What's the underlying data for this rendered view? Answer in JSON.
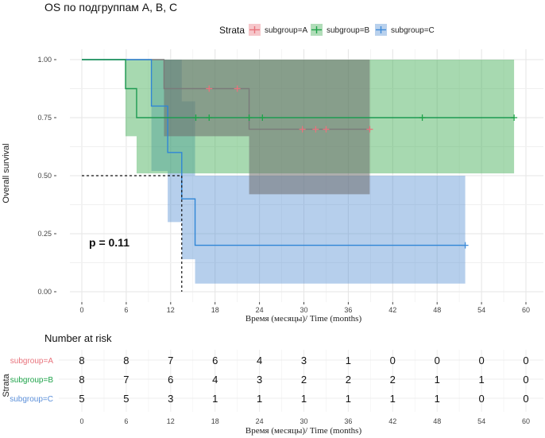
{
  "chart_data": {
    "type": "line",
    "subtype": "kaplan-meier",
    "title": "OS по подгруппам A, B, C",
    "xlabel": "Время (месяцы)/ Time (months)",
    "ylabel": "Overall survival",
    "xlim": [
      0,
      60
    ],
    "ylim": [
      0,
      1
    ],
    "xticks": [
      0,
      6,
      12,
      18,
      24,
      30,
      36,
      42,
      48,
      54,
      60
    ],
    "yticks": [
      "0.00",
      "0.25",
      "0.50",
      "0.75",
      "1.00"
    ],
    "grid": true,
    "legend": {
      "title": "Strata",
      "position": "top",
      "entries": [
        "subgroup=A",
        "subgroup=B",
        "subgroup=C"
      ]
    },
    "annotation": "p = 0.11",
    "median_line": {
      "x": 13.5,
      "y": 0.5
    },
    "series": [
      {
        "name": "subgroup=A",
        "color": "#e8737c",
        "line_color": "#7a7a7a",
        "steps": [
          [
            0,
            1.0
          ],
          [
            11.1,
            0.875
          ],
          [
            22.6,
            0.7
          ]
        ],
        "end": 38.9,
        "censor": [
          [
            17.2,
            0.875
          ],
          [
            21.0,
            0.875
          ],
          [
            29.8,
            0.7
          ],
          [
            31.6,
            0.7
          ],
          [
            33.0,
            0.7
          ],
          [
            38.9,
            0.7
          ]
        ],
        "ci": [
          [
            0,
            1.0,
            1.0
          ],
          [
            11.1,
            1.0,
            0.67
          ],
          [
            22.6,
            1.0,
            0.42
          ],
          [
            38.9,
            1.0,
            0.42
          ]
        ]
      },
      {
        "name": "subgroup=B",
        "color": "#1fa34a",
        "line_color": "#1e9a52",
        "steps": [
          [
            0,
            1.0
          ],
          [
            5.9,
            0.875
          ],
          [
            7.4,
            0.75
          ]
        ],
        "end": 58.4,
        "censor": [
          [
            15.4,
            0.75
          ],
          [
            17.2,
            0.75
          ],
          [
            22.6,
            0.75
          ],
          [
            24.4,
            0.75
          ],
          [
            46.0,
            0.75
          ],
          [
            58.4,
            0.75
          ]
        ],
        "ci": [
          [
            0,
            1.0,
            1.0
          ],
          [
            5.9,
            1.0,
            0.67
          ],
          [
            7.4,
            1.0,
            0.51
          ],
          [
            58.4,
            1.0,
            0.51
          ]
        ]
      },
      {
        "name": "subgroup=C",
        "color": "#3d8bd9",
        "line_color": "#2f86d6",
        "steps": [
          [
            0,
            1.0
          ],
          [
            9.4,
            0.8
          ],
          [
            11.6,
            0.6
          ],
          [
            13.5,
            0.4
          ],
          [
            15.3,
            0.2
          ]
        ],
        "end": 51.8,
        "censor": [
          [
            51.8,
            0.2
          ]
        ],
        "ci": [
          [
            0,
            1.0,
            1.0
          ],
          [
            9.4,
            1.0,
            0.52
          ],
          [
            11.6,
            1.0,
            0.3
          ],
          [
            13.5,
            0.82,
            0.14
          ],
          [
            15.3,
            0.5,
            0.035
          ],
          [
            51.8,
            0.5,
            0.035
          ]
        ]
      }
    ],
    "risk_table": {
      "title": "Number at risk",
      "ylabel": "Strata",
      "times": [
        0,
        6,
        12,
        18,
        24,
        30,
        36,
        42,
        48,
        54,
        60
      ],
      "rows": [
        {
          "name": "subgroup=A",
          "color": "#e8737c",
          "values": [
            8,
            8,
            7,
            6,
            4,
            3,
            1,
            0,
            0,
            0,
            0
          ]
        },
        {
          "name": "subgroup=B",
          "color": "#1fa34a",
          "values": [
            8,
            7,
            6,
            4,
            3,
            2,
            2,
            2,
            1,
            1,
            0
          ]
        },
        {
          "name": "subgroup=C",
          "color": "#5b8fd9",
          "values": [
            5,
            5,
            3,
            1,
            1,
            1,
            1,
            1,
            1,
            0,
            0
          ]
        }
      ],
      "xlabel": "Время (месяцы)/ Time (months)"
    }
  }
}
